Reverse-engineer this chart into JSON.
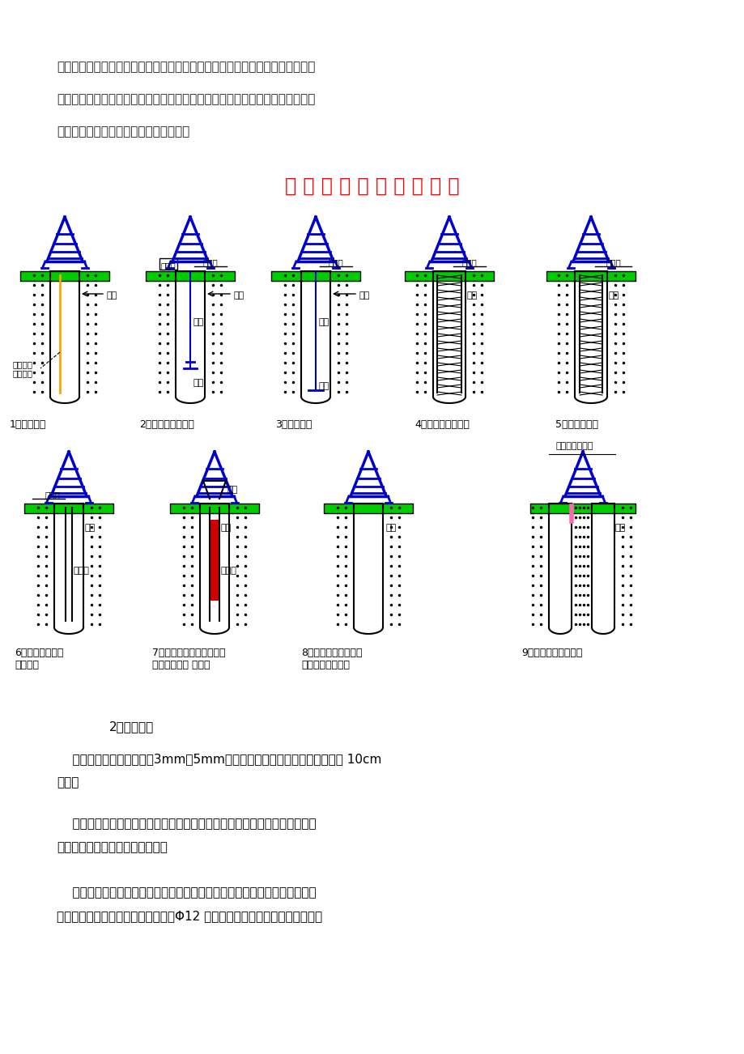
{
  "bg_color": "#ffffff",
  "top_paragraphs": [
    "施工过程中，充分发挥测量工作的先锋作用。根据业主提供的测量基准点，创建",
    "施工平面控制网，进行复核无误后，在现场设立平面网点进行施工放样，经校核",
    "并做好放样记录后，报监理工程师批准。"
  ],
  "flowchart_title": "钻 孔 桩 施 工 工 艺 流 程 图",
  "row1_labels": [
    "1、埋设护筒",
    "2、钻孔及泥浆循环",
    "3、成孔清孔",
    "4、分节吊放钢筋笼",
    "5、钢筋笼就位"
  ],
  "row2_labels": [
    "6、放下砼导管，\n二次清孔",
    "7、安放排水栓并浇筑砼，\n边浇筑砼边提 拔导管",
    "8、砼浇筑完毕１～２\n小时后提拔钢护筒",
    "9、间隔施工第二根桩"
  ],
  "bottom_paragraphs": [
    "2、埋设护筒",
    "    护筒采用钢护筒，壁厚为3mm～5mm，护筒的内径比钻孔桩设计直径稍大 10cm\n左右。",
    "    护筒必须具备足够的强度和刚度，接缝和接头保证紧密不漏水，必须考虑到\n可经过多次翻用而不会损坏变形。",
    "    护筒按照预先布置好的设计桩位中心进行埋设，并应严格保持护筒的垂直。\n护筒埋设完成后，在桩位中心点插上Φ12 钢筋，以利于桩架就位对中，并用经"
  ]
}
